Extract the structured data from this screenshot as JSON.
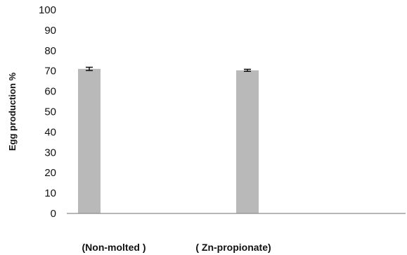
{
  "chart_data": {
    "type": "bar",
    "title": "",
    "xlabel": "",
    "ylabel": "Egg production %",
    "ylim": [
      0,
      100
    ],
    "yticks": [
      0,
      10,
      20,
      30,
      40,
      50,
      60,
      70,
      80,
      90,
      100
    ],
    "categories": [
      "(Non-molted )",
      "( Zn-propionate)"
    ],
    "series": [
      {
        "values": [
          71,
          70.3
        ],
        "errors": [
          0.8,
          0.5
        ]
      }
    ],
    "grid": false,
    "legend": "none",
    "colors": {
      "bar": "#b9b9b9",
      "axis": "#8c8c8c",
      "error": "#111111"
    }
  }
}
